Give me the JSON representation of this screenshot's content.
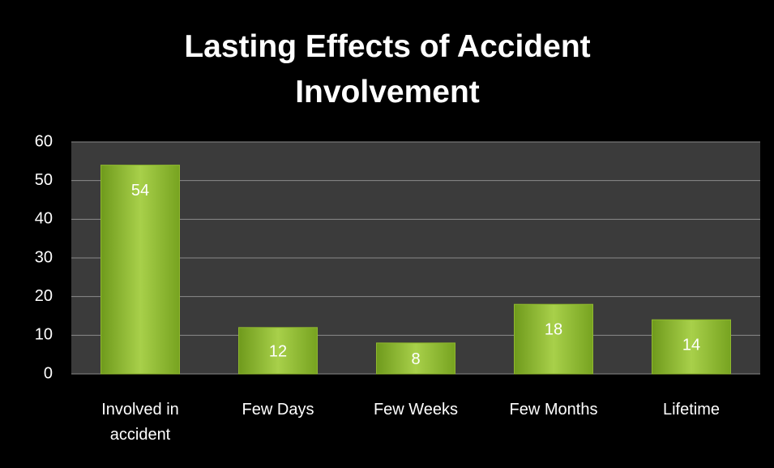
{
  "chart_data": {
    "type": "bar",
    "title": "Lasting Effects of Accident Involvement",
    "categories": [
      "Involved in accident",
      "Few Days",
      "Few Weeks",
      "Few Months",
      "Lifetime"
    ],
    "values": [
      54,
      12,
      8,
      18,
      14
    ],
    "color": "#8fb82e",
    "ylim": [
      0,
      60
    ],
    "yticks": [
      0,
      10,
      20,
      30,
      40,
      50,
      60
    ],
    "grid": true
  }
}
